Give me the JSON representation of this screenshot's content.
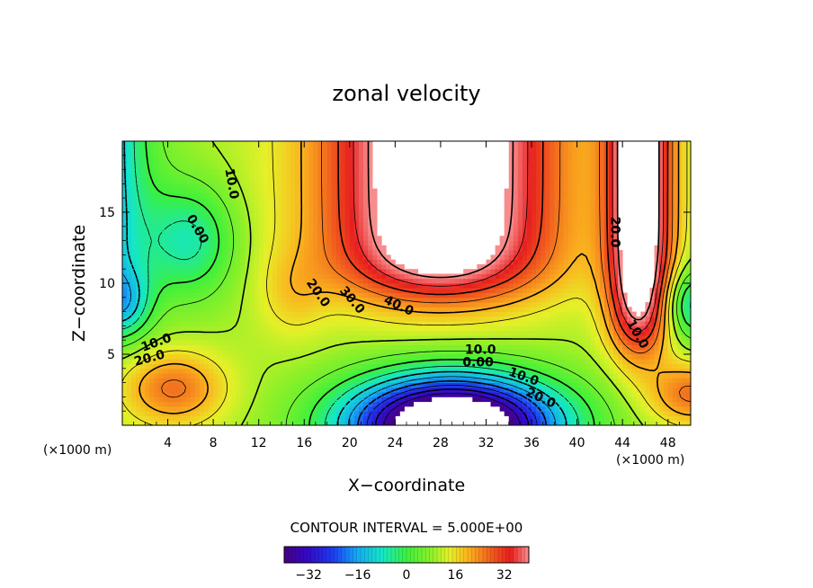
{
  "chart_data": {
    "type": "heatmap",
    "title": "zonal velocity",
    "xlabel": "X−coordinate",
    "ylabel": "Z−coordinate",
    "x_units": "(×1000 m)",
    "x_units_right": "(×1000 m)",
    "xlim": [
      0,
      50
    ],
    "ylim": [
      0,
      20
    ],
    "xticks": [
      "4",
      "8",
      "12",
      "16",
      "20",
      "24",
      "28",
      "32",
      "36",
      "40",
      "44",
      "48"
    ],
    "yticks": [
      "5",
      "10",
      "15"
    ],
    "contour_interval_text": "CONTOUR INTERVAL = 5.000E+00",
    "colorbar": {
      "min": -40,
      "max": 40,
      "ticks": [
        "−32",
        "−16",
        "0",
        "16",
        "32"
      ]
    },
    "contour_labels": [
      "10.0",
      "0.00",
      "20.0",
      "30.0",
      "40.0",
      "10.0",
      "20.0",
      "10.0",
      "20.0",
      "10.0",
      "0.00",
      "10.0",
      "20.0"
    ],
    "missing_value_regions": [
      "upper jet core above about 40",
      "lower core below about −40"
    ],
    "colors": {
      "strong_positive": "#e8241c",
      "zero": "#3cf03c",
      "strong_negative": "#3a10b0",
      "missing": "#ffffff"
    }
  }
}
